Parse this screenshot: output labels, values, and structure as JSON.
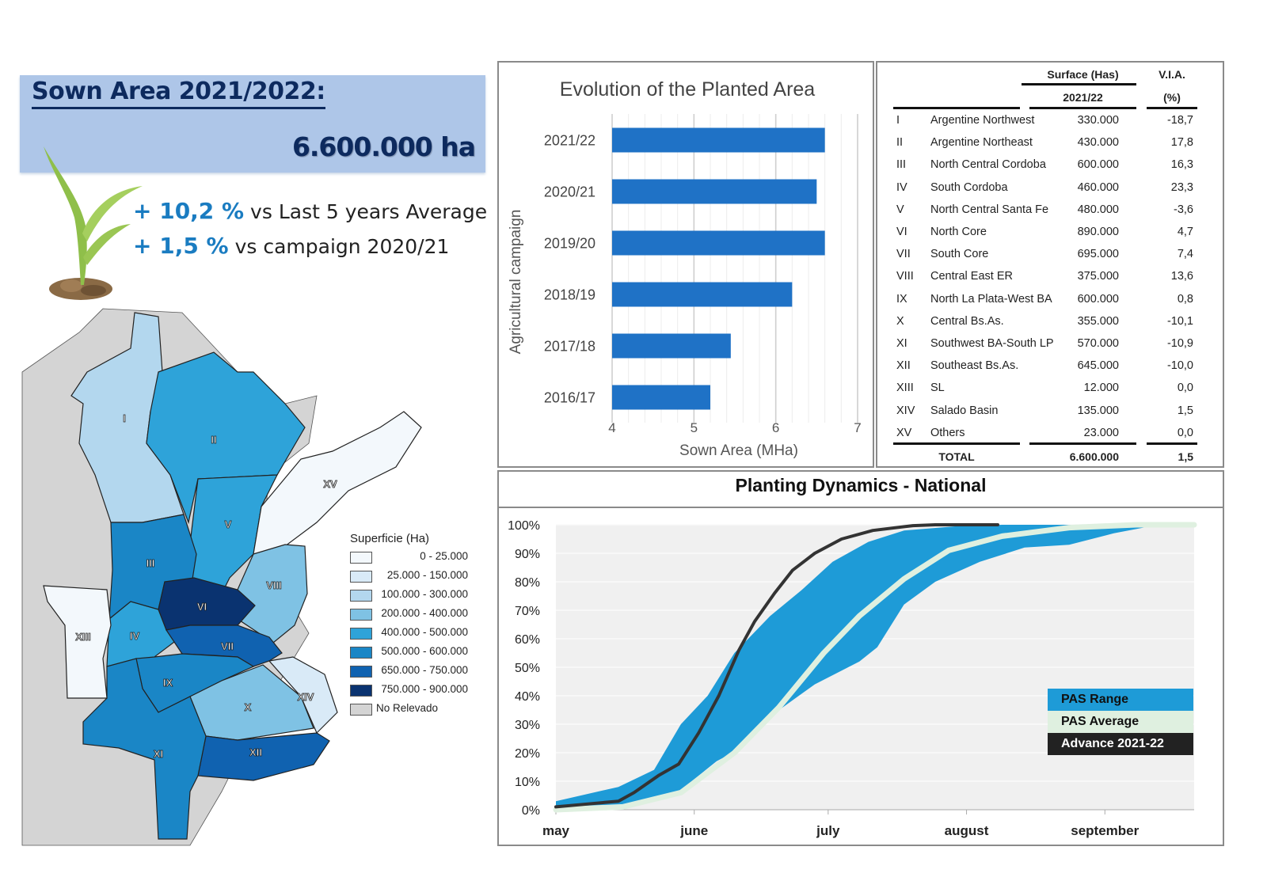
{
  "header": {
    "title": "Sown Area 2021/2022:",
    "total_value": "6.600.000 ha",
    "stat1_value": "+ 10,2 %",
    "stat1_label": " vs Last 5 years Average",
    "stat2_value": "+ 1,5 %",
    "stat2_label": " vs campaign 2020/21"
  },
  "map": {
    "legend_title": "Superficie (Ha)",
    "legend": [
      {
        "label": "0 - 25.000",
        "color": "#f3f8fc"
      },
      {
        "label": "25.000 - 150.000",
        "color": "#d9eaf7"
      },
      {
        "label": "100.000 - 300.000",
        "color": "#b3d7ee"
      },
      {
        "label": "200.000 - 400.000",
        "color": "#7fc2e4"
      },
      {
        "label": "400.000 - 500.000",
        "color": "#2ea3d9"
      },
      {
        "label": "500.000 - 600.000",
        "color": "#1a86c6"
      },
      {
        "label": "650.000 - 750.000",
        "color": "#1062b0"
      },
      {
        "label": "750.000 - 900.000",
        "color": "#0a3370"
      },
      {
        "label": "No Relevado",
        "color": "#d4d4d4"
      }
    ],
    "region_labels": [
      "I",
      "II",
      "III",
      "IV",
      "V",
      "VI",
      "VII",
      "VIII",
      "IX",
      "X",
      "XI",
      "XII",
      "XIII",
      "XIV",
      "XV"
    ]
  },
  "chart_data": [
    {
      "type": "bar",
      "orientation": "horizontal",
      "title": "Evolution of the Planted Area",
      "xlabel": "Sown Area (MHa)",
      "ylabel": "Agricultural campaign",
      "categories": [
        "2021/22",
        "2020/21",
        "2019/20",
        "2018/19",
        "2017/18",
        "2016/17"
      ],
      "values": [
        6.6,
        6.5,
        6.6,
        6.2,
        5.45,
        5.2
      ],
      "xlim": [
        4,
        7
      ],
      "xticks": [
        "4",
        "5",
        "6",
        "7"
      ],
      "grid": true,
      "color": "#1f72c6"
    },
    {
      "type": "area",
      "title": "Planting Dynamics - National",
      "x_unit": "days since May 1",
      "xlim": [
        0,
        143
      ],
      "ylim": [
        0,
        100
      ],
      "yticks": [
        "0%",
        "10%",
        "20%",
        "30%",
        "40%",
        "50%",
        "60%",
        "70%",
        "80%",
        "90%",
        "100%"
      ],
      "month_ticks": [
        {
          "label": "may",
          "day": 0
        },
        {
          "label": "june",
          "day": 31
        },
        {
          "label": "july",
          "day": 61
        },
        {
          "label": "august",
          "day": 92
        },
        {
          "label": "september",
          "day": 123
        }
      ],
      "legend_placement": "bottom-right",
      "series": [
        {
          "name": "PAS Range",
          "color": "#1e9bd7",
          "upper": [
            [
              0,
              3
            ],
            [
              14,
              8
            ],
            [
              22,
              14
            ],
            [
              28,
              30
            ],
            [
              34,
              40
            ],
            [
              40,
              55
            ],
            [
              48,
              68
            ],
            [
              55,
              77
            ],
            [
              62,
              87
            ],
            [
              70,
              94
            ],
            [
              78,
              98
            ],
            [
              90,
              99.5
            ],
            [
              100,
              100
            ],
            [
              143,
              100
            ]
          ],
          "lower": [
            [
              0,
              0
            ],
            [
              14,
              0
            ],
            [
              22,
              3
            ],
            [
              28,
              7
            ],
            [
              36,
              17
            ],
            [
              42,
              22
            ],
            [
              50,
              35
            ],
            [
              58,
              44
            ],
            [
              68,
              52
            ],
            [
              72,
              57
            ],
            [
              78,
              72
            ],
            [
              85,
              80
            ],
            [
              95,
              87
            ],
            [
              105,
              92
            ],
            [
              115,
              93
            ],
            [
              125,
              97
            ],
            [
              135,
              100
            ],
            [
              143,
              100
            ]
          ]
        },
        {
          "name": "PAS Average",
          "color": "#dff0e0",
          "points": [
            [
              0,
              0
            ],
            [
              15,
              1
            ],
            [
              28,
              6
            ],
            [
              40,
              20
            ],
            [
              50,
              36
            ],
            [
              60,
              55
            ],
            [
              68,
              68
            ],
            [
              78,
              81
            ],
            [
              88,
              91
            ],
            [
              100,
              96
            ],
            [
              115,
              99
            ],
            [
              130,
              100
            ],
            [
              143,
              100
            ]
          ]
        },
        {
          "name": "Advance 2021-22",
          "color": "#333333",
          "points": [
            [
              0,
              1
            ],
            [
              14,
              3
            ],
            [
              17.5,
              6
            ],
            [
              23,
              12
            ],
            [
              27.5,
              16
            ],
            [
              32,
              27
            ],
            [
              36.5,
              40
            ],
            [
              41,
              56
            ],
            [
              44.5,
              66
            ],
            [
              49,
              76
            ],
            [
              53,
              84
            ],
            [
              58,
              90
            ],
            [
              64,
              95
            ],
            [
              71,
              98
            ],
            [
              80,
              99.7
            ],
            [
              85,
              100
            ],
            [
              99,
              100
            ]
          ]
        }
      ]
    }
  ],
  "table": {
    "header_surface": "Surface (Has)",
    "header_year": "2021/22",
    "header_via": "V.I.A.",
    "header_via_unit": "(%)",
    "rows": [
      {
        "id": "I",
        "name": "Argentine Northwest",
        "surface": "330.000",
        "via": "-18,7"
      },
      {
        "id": "II",
        "name": "Argentine Northeast",
        "surface": "430.000",
        "via": "17,8"
      },
      {
        "id": "III",
        "name": "North Central Cordoba",
        "surface": "600.000",
        "via": "16,3"
      },
      {
        "id": "IV",
        "name": "South Cordoba",
        "surface": "460.000",
        "via": "23,3"
      },
      {
        "id": "V",
        "name": "North Central Santa Fe",
        "surface": "480.000",
        "via": "-3,6"
      },
      {
        "id": "VI",
        "name": "North Core",
        "surface": "890.000",
        "via": "4,7"
      },
      {
        "id": "VII",
        "name": "South Core",
        "surface": "695.000",
        "via": "7,4"
      },
      {
        "id": "VIII",
        "name": "Central East ER",
        "surface": "375.000",
        "via": "13,6"
      },
      {
        "id": "IX",
        "name": "North La Plata-West BA",
        "surface": "600.000",
        "via": "0,8"
      },
      {
        "id": "X",
        "name": "Central Bs.As.",
        "surface": "355.000",
        "via": "-10,1"
      },
      {
        "id": "XI",
        "name": "Southwest BA-South LP",
        "surface": "570.000",
        "via": "-10,9"
      },
      {
        "id": "XII",
        "name": "Southeast Bs.As.",
        "surface": "645.000",
        "via": "-10,0"
      },
      {
        "id": "XIII",
        "name": "SL",
        "surface": "12.000",
        "via": "0,0"
      },
      {
        "id": "XIV",
        "name": "Salado Basin",
        "surface": "135.000",
        "via": "1,5"
      },
      {
        "id": "XV",
        "name": "Others",
        "surface": "23.000",
        "via": "0,0"
      }
    ],
    "total_label": "TOTAL",
    "total_surface": "6.600.000",
    "total_via": "1,5"
  }
}
